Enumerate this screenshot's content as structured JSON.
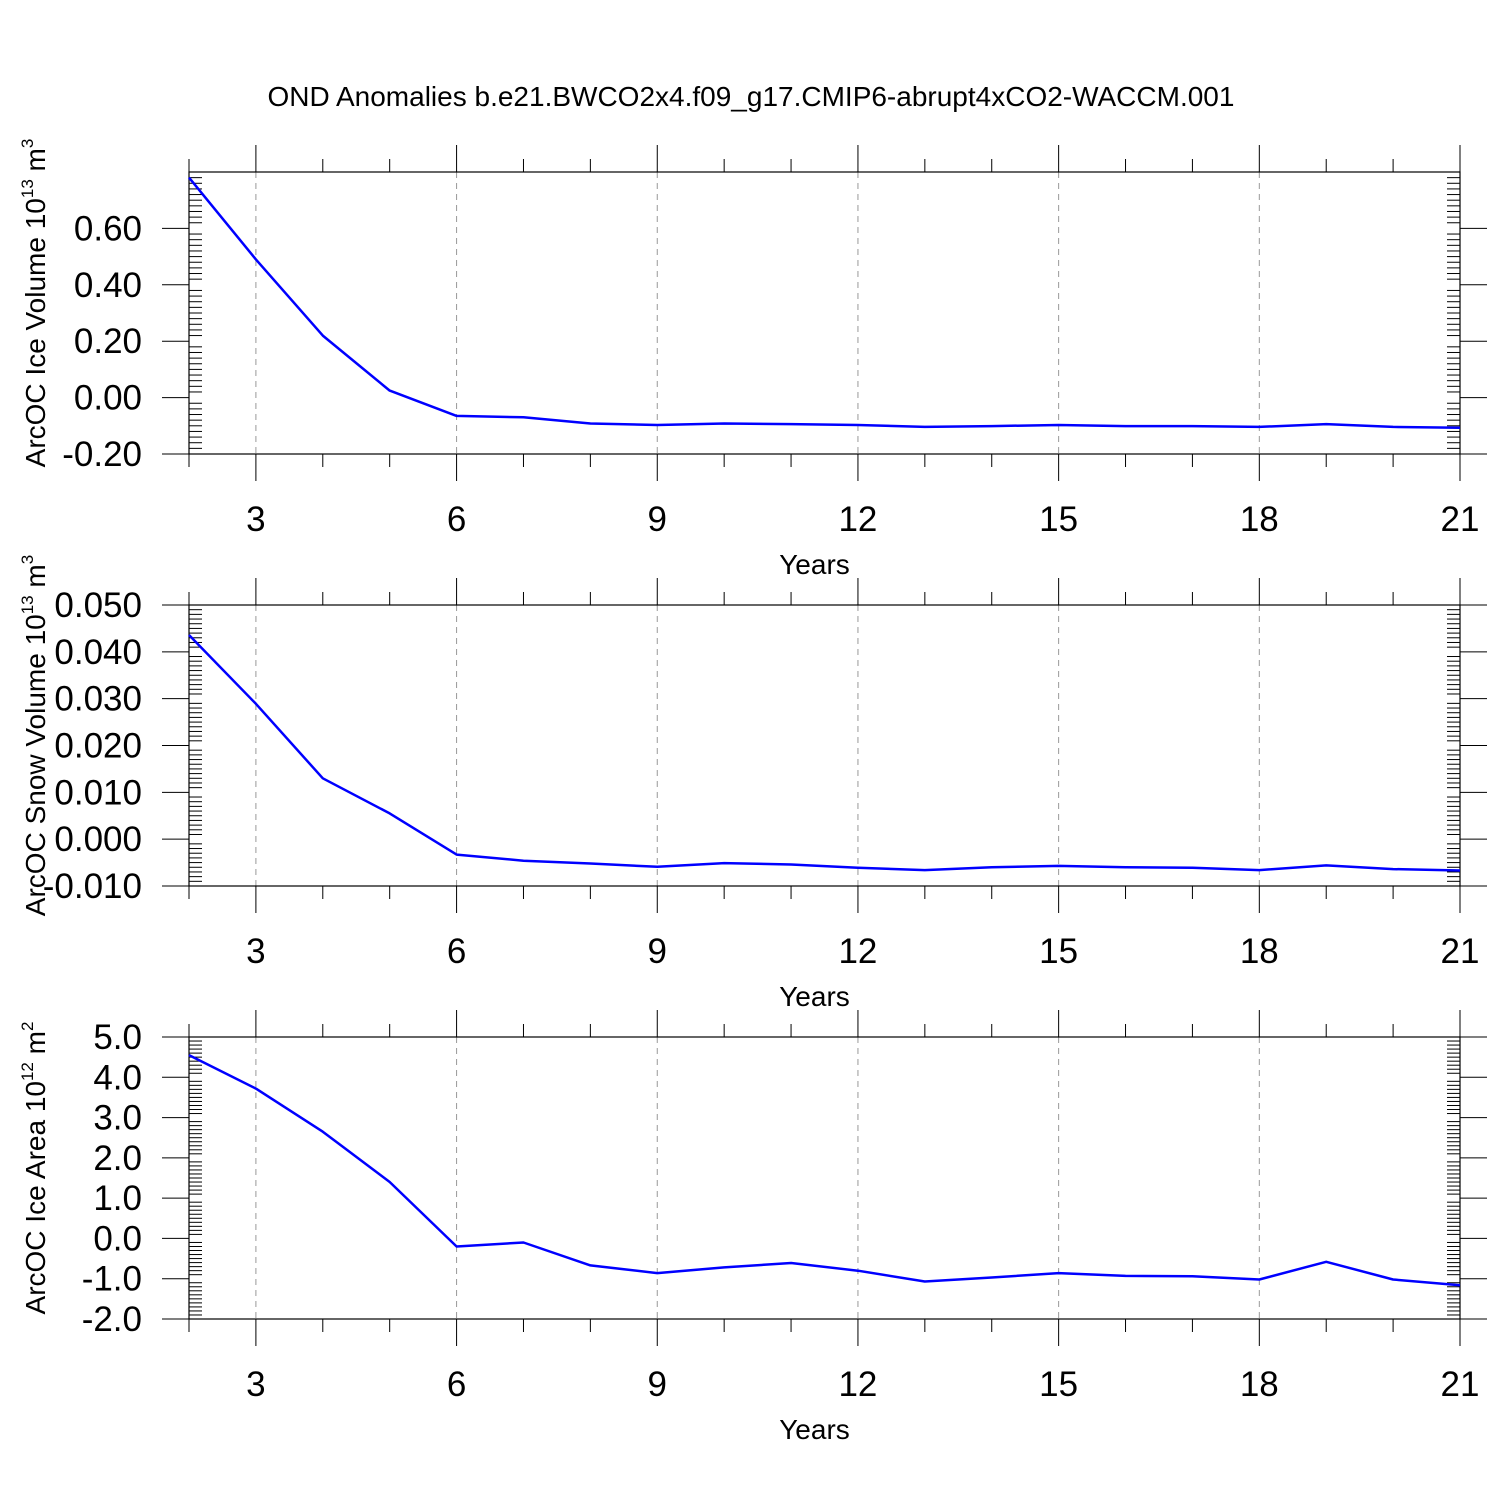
{
  "figure": {
    "title": "OND Anomalies b.e21.BWCO2x4.f09_g17.CMIP6-abrupt4xCO2-WACCM.001",
    "line_color": "#0000ff",
    "grid_color": "#999999",
    "axis_color": "#000000"
  },
  "chart_data": [
    {
      "type": "line",
      "xlabel": "Years",
      "ylabel": "ArcOC Ice Volume 10",
      "ylabel_exp": "13",
      "ylabel_unit": " m",
      "ylabel_unit_exp": "3",
      "x": [
        2,
        3,
        4,
        5,
        6,
        7,
        8,
        9,
        10,
        11,
        12,
        13,
        14,
        15,
        16,
        17,
        18,
        19,
        20,
        21
      ],
      "series": [
        {
          "values": [
            0.78,
            0.49,
            0.22,
            0.025,
            -0.065,
            -0.07,
            -0.092,
            -0.097,
            -0.092,
            -0.094,
            -0.097,
            -0.104,
            -0.101,
            -0.097,
            -0.101,
            -0.101,
            -0.104,
            -0.094,
            -0.104,
            -0.107
          ]
        }
      ],
      "xlim": [
        2,
        21
      ],
      "ylim": [
        -0.2,
        0.8
      ],
      "xticks": [
        3,
        6,
        9,
        12,
        15,
        18,
        21
      ],
      "xtick_labels": [
        "3",
        "6",
        "9",
        "12",
        "15",
        "18",
        "21"
      ],
      "yticks": [
        -0.2,
        0,
        0.2,
        0.4,
        0.6
      ],
      "ytick_labels": [
        "-0.20",
        "0.00",
        "0.20",
        "0.40",
        "0.60"
      ],
      "grid": "vertical dashed at major x ticks"
    },
    {
      "type": "line",
      "xlabel": "Years",
      "ylabel": "ArcOC Snow Volume 10",
      "ylabel_exp": "13",
      "ylabel_unit": " m",
      "ylabel_unit_exp": "3",
      "x": [
        2,
        3,
        4,
        5,
        6,
        7,
        8,
        9,
        10,
        11,
        12,
        13,
        14,
        15,
        16,
        17,
        18,
        19,
        20,
        21
      ],
      "series": [
        {
          "values": [
            0.0436,
            0.0289,
            0.013,
            0.0055,
            -0.0033,
            -0.0046,
            -0.0052,
            -0.0059,
            -0.0051,
            -0.0054,
            -0.0061,
            -0.0066,
            -0.006,
            -0.0057,
            -0.006,
            -0.0061,
            -0.0066,
            -0.0056,
            -0.0064,
            -0.0067
          ]
        }
      ],
      "xlim": [
        2,
        21
      ],
      "ylim": [
        -0.01,
        0.05
      ],
      "xticks": [
        3,
        6,
        9,
        12,
        15,
        18,
        21
      ],
      "xtick_labels": [
        "3",
        "6",
        "9",
        "12",
        "15",
        "18",
        "21"
      ],
      "yticks": [
        -0.01,
        0,
        0.01,
        0.02,
        0.03,
        0.04,
        0.05
      ],
      "ytick_labels": [
        "-0.010",
        "0.000",
        "0.010",
        "0.020",
        "0.030",
        "0.040",
        "0.050"
      ],
      "grid": "vertical dashed at major x ticks"
    },
    {
      "type": "line",
      "xlabel": "Years",
      "ylabel": "ArcOC Ice Area 10",
      "ylabel_exp": "12",
      "ylabel_unit": " m",
      "ylabel_unit_exp": "2",
      "x": [
        2,
        3,
        4,
        5,
        6,
        7,
        8,
        9,
        10,
        11,
        12,
        13,
        14,
        15,
        16,
        17,
        18,
        19,
        20,
        21
      ],
      "series": [
        {
          "values": [
            4.55,
            3.72,
            2.65,
            1.4,
            -0.2,
            -0.1,
            -0.67,
            -0.86,
            -0.72,
            -0.61,
            -0.8,
            -1.07,
            -0.97,
            -0.86,
            -0.93,
            -0.94,
            -1.02,
            -0.58,
            -1.02,
            -1.16
          ]
        }
      ],
      "xlim": [
        2,
        21
      ],
      "ylim": [
        -2,
        5
      ],
      "xticks": [
        3,
        6,
        9,
        12,
        15,
        18,
        21
      ],
      "xtick_labels": [
        "3",
        "6",
        "9",
        "12",
        "15",
        "18",
        "21"
      ],
      "yticks": [
        -2,
        -1,
        0,
        1,
        2,
        3,
        4,
        5
      ],
      "ytick_labels": [
        "-2.0",
        "-1.0",
        "0.0",
        "1.0",
        "2.0",
        "3.0",
        "4.0",
        "5.0"
      ],
      "grid": "vertical dashed at major x ticks"
    }
  ]
}
